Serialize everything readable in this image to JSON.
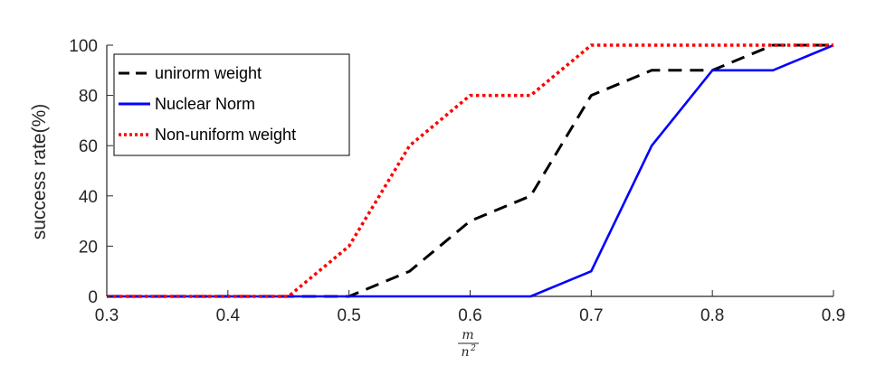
{
  "chart_data": {
    "type": "line",
    "x": [
      0.3,
      0.35,
      0.4,
      0.45,
      0.5,
      0.55,
      0.6,
      0.65,
      0.7,
      0.75,
      0.8,
      0.85,
      0.9
    ],
    "series": [
      {
        "name": "unirorm weight",
        "color": "#000000",
        "style": "dashed",
        "values": [
          0,
          0,
          0,
          0,
          0,
          10,
          30,
          40,
          80,
          90,
          90,
          100,
          100
        ]
      },
      {
        "name": "Nuclear Norm",
        "color": "#0000ff",
        "style": "solid",
        "values": [
          0,
          0,
          0,
          0,
          0,
          0,
          0,
          0,
          10,
          60,
          90,
          90,
          100
        ]
      },
      {
        "name": "Non-uniform weight",
        "color": "#ff0000",
        "style": "dotted",
        "values": [
          0,
          0,
          0,
          0,
          20,
          60,
          80,
          80,
          100,
          100,
          100,
          100,
          100
        ]
      }
    ],
    "xlim": [
      0.3,
      0.9
    ],
    "ylim": [
      0,
      100
    ],
    "xticks": [
      "0.3",
      "0.4",
      "0.5",
      "0.6",
      "0.7",
      "0.8",
      "0.9"
    ],
    "yticks": [
      "0",
      "20",
      "40",
      "60",
      "80",
      "100"
    ],
    "ylabel": "success rate(%)",
    "xlabel": {
      "numerator": "m",
      "denominator": "n",
      "exponent": "2"
    },
    "grid": false,
    "legend_position": "top-left"
  }
}
